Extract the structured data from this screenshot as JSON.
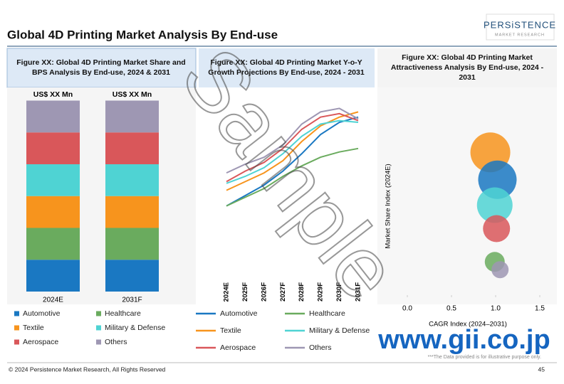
{
  "header": {
    "title": "Global  4D Printing  Market Analysis By End-use",
    "logo": "PERSiSTENCE",
    "logo_sub": "MARKET RESEARCH"
  },
  "footer": {
    "copyright": "© 2024 Persistence Market Research, All Rights Reserved",
    "page": "45"
  },
  "watermark": {
    "text": "Sample",
    "site": "www.gii.co.jp",
    "note": "***The Data provided is for illustrative purpose only."
  },
  "chart_data": [
    {
      "type": "stacked_bar",
      "title": "Figure XX: Global  4D Printing  Market Share and BPS Analysis By End-use, 2024 & 2031",
      "categories": [
        "2024E",
        "2031F"
      ],
      "bar_labels": [
        "US$ XX Mn",
        "US$ XX Mn"
      ],
      "ylim": [
        0,
        100
      ],
      "series": [
        {
          "name": "Automotive",
          "color": "#1a78c2",
          "values": [
            16.7,
            16.7
          ]
        },
        {
          "name": "Healthcare",
          "color": "#6aab5e",
          "values": [
            16.7,
            16.7
          ]
        },
        {
          "name": "Textile",
          "color": "#f7941d",
          "values": [
            16.7,
            16.7
          ]
        },
        {
          "name": "Military & Defense",
          "color": "#4fd3d3",
          "values": [
            16.7,
            16.7
          ]
        },
        {
          "name": "Aerospace",
          "color": "#d9575a",
          "values": [
            16.7,
            16.7
          ]
        },
        {
          "name": "Others",
          "color": "#9e97b3",
          "values": [
            16.7,
            16.7
          ]
        }
      ]
    },
    {
      "type": "line",
      "title": "Figure XX: Global  4D Printing  Market Y-o-Y Growth Projections By End-use, 2024 - 2031",
      "categories": [
        "2024E",
        "2025F",
        "2026F",
        "2027F",
        "2028F",
        "2029F",
        "2030F",
        "2031F"
      ],
      "ylim": [
        0,
        100
      ],
      "series": [
        {
          "name": "Automotive",
          "color": "#1a78c2",
          "values": [
            43,
            49,
            55,
            63,
            73,
            84,
            91,
            94
          ]
        },
        {
          "name": "Healthcare",
          "color": "#6aab5e",
          "values": [
            43,
            48,
            53,
            60,
            66,
            71,
            74,
            76
          ]
        },
        {
          "name": "Textile",
          "color": "#f7941d",
          "values": [
            52,
            57,
            62,
            69,
            80,
            89,
            94,
            97
          ]
        },
        {
          "name": "Military & Defense",
          "color": "#4fd3d3",
          "values": [
            56,
            60,
            65,
            73,
            83,
            90,
            92,
            91
          ]
        },
        {
          "name": "Aerospace",
          "color": "#d9575a",
          "values": [
            57,
            63,
            68,
            76,
            87,
            94,
            96,
            92
          ]
        },
        {
          "name": "Others",
          "color": "#9e97b3",
          "values": [
            62,
            67,
            71,
            78,
            90,
            97,
            99,
            93
          ]
        }
      ]
    },
    {
      "type": "bubble",
      "title": "Figure XX: Global  4D Printing  Market Attractiveness Analysis By End-use, 2024 - 2031",
      "x_label": "CAGR Index (2024–2031)",
      "y_label": "Market Share Index (2024E)",
      "xlim": [
        0,
        1.5
      ],
      "xticks": [
        {
          "value": 0,
          "label": "0.0"
        },
        0.5,
        {
          "value": 1,
          "label": "1.0"
        },
        1.5
      ],
      "ylim": [
        0,
        1
      ],
      "points": [
        {
          "color": "#f7941d",
          "x": 0.94,
          "y": 0.73,
          "size": 28
        },
        {
          "color": "#1a78c2",
          "x": 1.02,
          "y": 0.59,
          "size": 27
        },
        {
          "color": "#4fd3d3",
          "x": 0.99,
          "y": 0.46,
          "size": 25
        },
        {
          "color": "#d9575a",
          "x": 1.01,
          "y": 0.34,
          "size": 19
        },
        {
          "color": "#6aab5e",
          "x": 0.99,
          "y": 0.17,
          "size": 14
        },
        {
          "color": "#9e97b3",
          "x": 1.05,
          "y": 0.13,
          "size": 12
        }
      ]
    }
  ]
}
